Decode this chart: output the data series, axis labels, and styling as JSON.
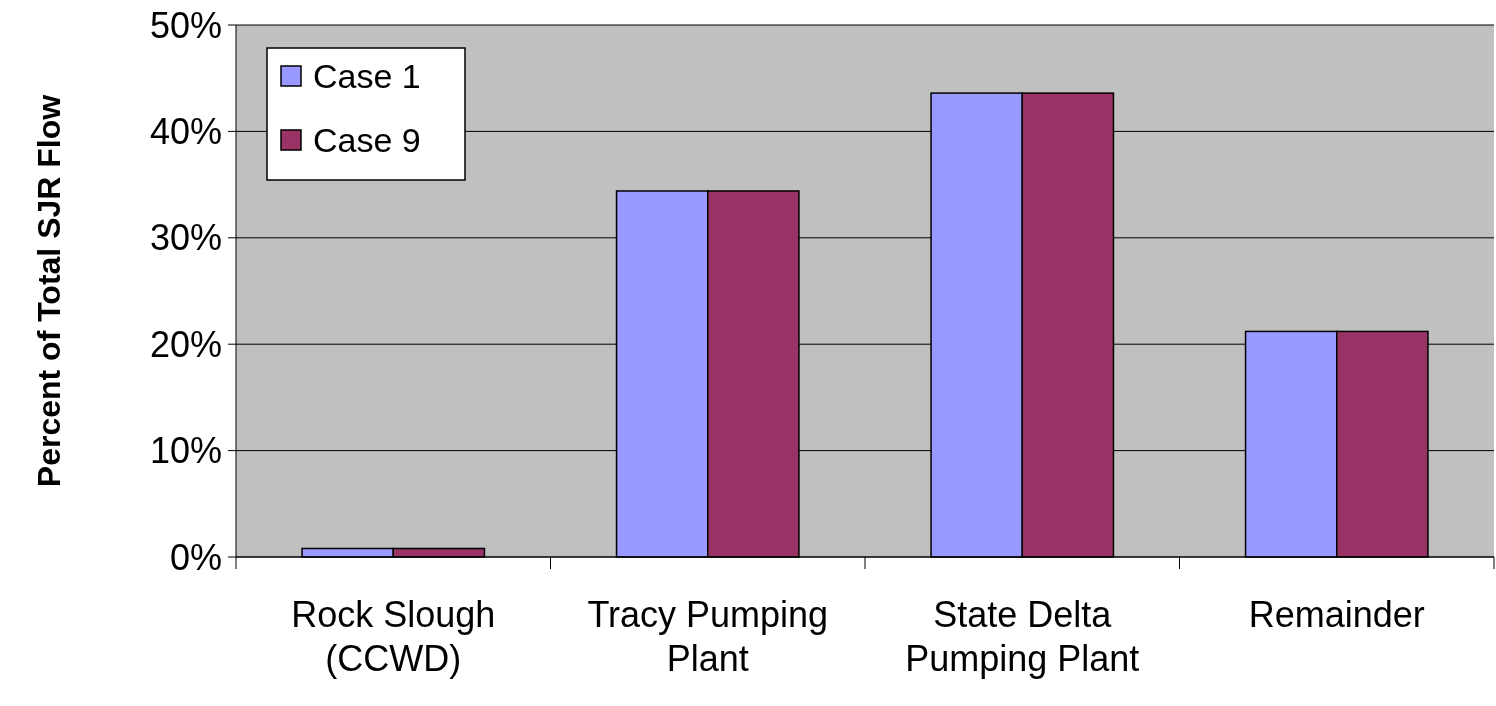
{
  "chart_data": {
    "type": "bar",
    "ylabel": "Percent of Total SJR Flow",
    "categories": [
      "Rock Slough (CCWD)",
      "Tracy Pumping Plant",
      "State Delta Pumping Plant",
      "Remainder"
    ],
    "series": [
      {
        "name": "Case 1",
        "color": "#9999ff",
        "values": [
          0.8,
          34.4,
          43.6,
          21.2
        ]
      },
      {
        "name": "Case 9",
        "color": "#993366",
        "values": [
          0.8,
          34.4,
          43.6,
          21.2
        ]
      }
    ],
    "ylim": [
      0,
      50
    ],
    "yticks": [
      {
        "value": 0,
        "label": "0%"
      },
      {
        "value": 10,
        "label": "10%"
      },
      {
        "value": 20,
        "label": "20%"
      },
      {
        "value": 30,
        "label": "30%"
      },
      {
        "value": 40,
        "label": "40%"
      },
      {
        "value": 50,
        "label": "50%"
      }
    ],
    "grid": "y",
    "legend": "top left"
  }
}
